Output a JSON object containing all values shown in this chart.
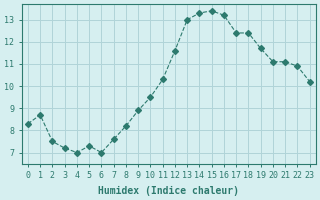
{
  "x": [
    0,
    1,
    2,
    3,
    4,
    5,
    6,
    7,
    8,
    9,
    10,
    11,
    12,
    13,
    14,
    15,
    16,
    17,
    18,
    19,
    20,
    21,
    22,
    23
  ],
  "y": [
    8.3,
    8.7,
    7.5,
    7.2,
    7.0,
    7.3,
    7.0,
    7.6,
    8.2,
    8.9,
    9.5,
    10.3,
    11.6,
    13.0,
    13.3,
    13.4,
    13.2,
    12.4,
    12.4,
    11.7,
    11.1,
    11.1,
    10.9,
    10.2
  ],
  "line_color": "#2d7a6e",
  "marker": "D",
  "marker_size": 3,
  "line_width": 0.8,
  "bg_color": "#d6eff0",
  "grid_color": "#b0d4d8",
  "tick_color": "#2d7a6e",
  "xlabel": "Humidex (Indice chaleur)",
  "xlim": [
    -0.5,
    23.5
  ],
  "ylim": [
    6.5,
    13.7
  ],
  "yticks": [
    7,
    8,
    9,
    10,
    11,
    12,
    13
  ],
  "xticks": [
    0,
    1,
    2,
    3,
    4,
    5,
    6,
    7,
    8,
    9,
    10,
    11,
    12,
    13,
    14,
    15,
    16,
    17,
    18,
    19,
    20,
    21,
    22,
    23
  ],
  "xlabel_fontsize": 7,
  "tick_fontsize": 6
}
